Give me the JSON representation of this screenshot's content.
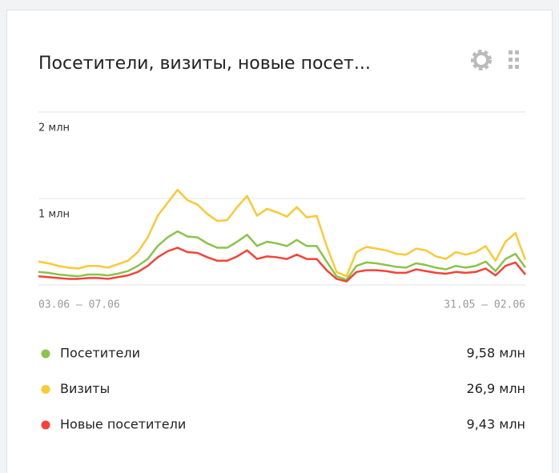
{
  "chart_data": {
    "type": "line",
    "title": "Посетители, визиты, новые посет...",
    "categories": [
      "03.06 — 07.06",
      null,
      null,
      null,
      null,
      null,
      null,
      null,
      null,
      null,
      null,
      null,
      null,
      null,
      null,
      null,
      null,
      null,
      null,
      null,
      null,
      null,
      null,
      null,
      null,
      null,
      null,
      null,
      null,
      null,
      null,
      null,
      null,
      null,
      null,
      null,
      null,
      null,
      null,
      null,
      null,
      null,
      null,
      null,
      null,
      null,
      null,
      null,
      null,
      "31.05 — 02.06"
    ],
    "ylim": [
      0,
      2
    ],
    "yticks": [
      {
        "value": 1,
        "label": "1 млн"
      },
      {
        "value": 2,
        "label": "2 млн"
      }
    ],
    "grid": true,
    "series": [
      {
        "name": "Визиты",
        "color": "#fcc934",
        "total": "26,9 млн",
        "values": [
          0.27,
          0.25,
          0.22,
          0.2,
          0.19,
          0.22,
          0.22,
          0.2,
          0.24,
          0.28,
          0.38,
          0.55,
          0.8,
          0.95,
          1.1,
          0.98,
          0.93,
          0.82,
          0.74,
          0.75,
          0.9,
          1.03,
          0.8,
          0.88,
          0.84,
          0.79,
          0.9,
          0.78,
          0.8,
          0.45,
          0.15,
          0.1,
          0.38,
          0.44,
          0.42,
          0.4,
          0.36,
          0.35,
          0.42,
          0.4,
          0.33,
          0.3,
          0.38,
          0.35,
          0.38,
          0.45,
          0.28,
          0.5,
          0.6,
          0.29
        ]
      },
      {
        "name": "Посетители",
        "color": "#8bc34a",
        "total": "9,58 млн",
        "values": [
          0.15,
          0.14,
          0.12,
          0.11,
          0.1,
          0.12,
          0.12,
          0.11,
          0.13,
          0.16,
          0.22,
          0.3,
          0.45,
          0.55,
          0.62,
          0.56,
          0.55,
          0.48,
          0.43,
          0.43,
          0.5,
          0.58,
          0.45,
          0.5,
          0.48,
          0.45,
          0.52,
          0.45,
          0.45,
          0.27,
          0.1,
          0.06,
          0.22,
          0.26,
          0.25,
          0.23,
          0.21,
          0.2,
          0.25,
          0.23,
          0.2,
          0.18,
          0.22,
          0.2,
          0.22,
          0.27,
          0.16,
          0.3,
          0.36,
          0.2
        ]
      },
      {
        "name": "Новые посетители",
        "color": "#f44336",
        "total": "9,43 млн",
        "values": [
          0.1,
          0.09,
          0.08,
          0.07,
          0.07,
          0.08,
          0.08,
          0.07,
          0.09,
          0.11,
          0.15,
          0.22,
          0.32,
          0.39,
          0.43,
          0.38,
          0.37,
          0.32,
          0.28,
          0.28,
          0.33,
          0.4,
          0.3,
          0.33,
          0.32,
          0.3,
          0.35,
          0.3,
          0.3,
          0.17,
          0.07,
          0.04,
          0.15,
          0.17,
          0.17,
          0.16,
          0.14,
          0.14,
          0.18,
          0.16,
          0.14,
          0.13,
          0.15,
          0.14,
          0.15,
          0.19,
          0.11,
          0.22,
          0.26,
          0.12
        ]
      }
    ]
  }
}
